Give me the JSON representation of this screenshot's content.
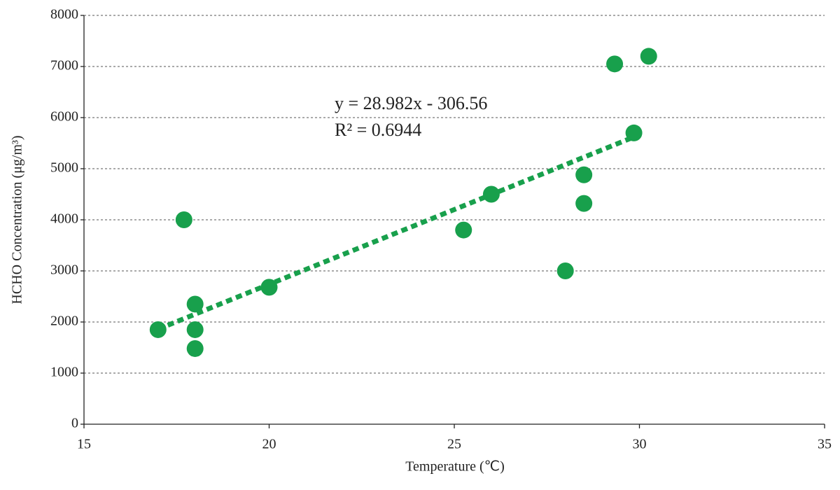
{
  "chart_data": {
    "type": "scatter",
    "x_label": "Temperature (℃)",
    "y_label": "HCHO Concentration (μg/m³)",
    "annotations": [
      "y = 28.982x - 306.56",
      "R² = 0.6944"
    ],
    "series": [
      {
        "color": "#18a04c",
        "x": [
          17.0,
          17.7,
          18.0,
          18.0,
          18.0,
          20.0,
          25.25,
          26.0,
          28.0,
          28.5,
          28.5,
          29.33,
          29.85,
          30.25
        ],
        "values": [
          1850,
          4000,
          2350,
          1850,
          1480,
          2680,
          3800,
          4500,
          3000,
          4880,
          4320,
          7050,
          5700,
          7200
        ]
      }
    ],
    "trendline": {
      "color": "#18a04c",
      "x": [
        17.0,
        29.85
      ],
      "values": [
        1860,
        5620
      ]
    },
    "xlim": [
      15,
      35
    ],
    "xticks": [
      15,
      20,
      25,
      30,
      35
    ],
    "ylim": [
      0,
      8000
    ],
    "yticks": [
      0,
      1000,
      2000,
      3000,
      4000,
      5000,
      6000,
      7000,
      8000
    ],
    "grid": true
  }
}
